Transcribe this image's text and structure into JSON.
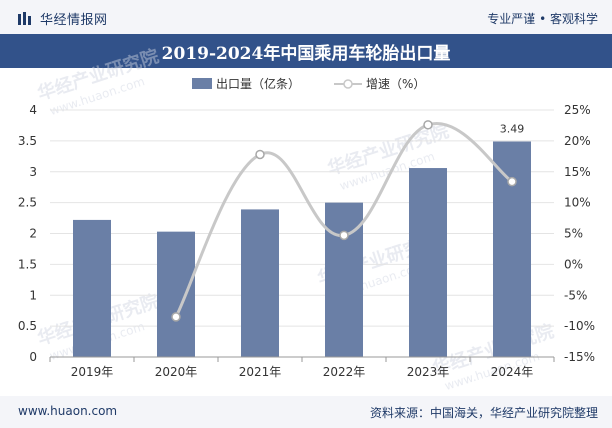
{
  "header": {
    "brand": "华经情报网",
    "tagline": "专业严谨 • 客观科学"
  },
  "footer": {
    "site": "www.huaon.com",
    "source": "资料来源：中国海关，华经产业研究院整理"
  },
  "watermark": {
    "cn": "华经产业研究院",
    "en": "www.huaon.com"
  },
  "colors": {
    "bar": "#6a7fa6",
    "line": "#c8c8c8",
    "title_bg": "#32528a",
    "brand": "#1f3a68"
  },
  "chart_data": {
    "type": "bar",
    "title": "2019-2024年中国乘用车轮胎出口量",
    "categories": [
      "2019年",
      "2020年",
      "2021年",
      "2022年",
      "2023年",
      "2024年"
    ],
    "series": [
      {
        "name": "出口量（亿条）",
        "type": "bar",
        "axis": "left",
        "values": [
          2.22,
          2.03,
          2.39,
          2.5,
          3.06,
          3.49
        ]
      },
      {
        "name": "增速（%）",
        "type": "line",
        "axis": "right",
        "values": [
          null,
          -8.5,
          17.8,
          4.7,
          22.6,
          13.4
        ]
      }
    ],
    "data_labels": [
      {
        "series": 0,
        "index": 5,
        "text": "3.49"
      }
    ],
    "y_left": {
      "min": 0,
      "max": 4,
      "ticks": [
        "0",
        "0.5",
        "1",
        "1.5",
        "2",
        "2.5",
        "3",
        "3.5",
        "4"
      ]
    },
    "y_right": {
      "min": -15,
      "max": 25,
      "ticks": [
        "-15%",
        "-10%",
        "-5%",
        "0%",
        "5%",
        "10%",
        "15%",
        "20%",
        "25%"
      ]
    },
    "legend": [
      "出口量（亿条）",
      "增速（%）"
    ],
    "legend_position": "top-center"
  }
}
